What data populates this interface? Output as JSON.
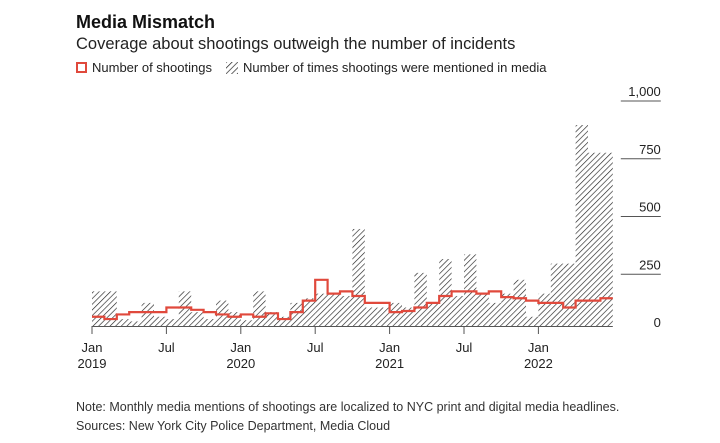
{
  "header": {
    "title": "Media Mismatch",
    "subtitle": "Coverage about shootings outweigh the number of incidents"
  },
  "legend": {
    "line_label": "Number of shootings",
    "bar_label": "Number of times shootings were mentioned in media"
  },
  "notes": {
    "note": "Note: Monthly media mentions of shootings are localized to NYC print and digital media headlines.",
    "sources": "Sources: New York City Police Department, Media Cloud"
  },
  "colors": {
    "line": "#e0493c",
    "hatch": "#222222",
    "axis": "#555555"
  },
  "chart_data": {
    "type": "bar",
    "title": "Media Mismatch",
    "subtitle": "Coverage about shootings outweigh the number of incidents",
    "x": [
      "2019-01",
      "2019-02",
      "2019-03",
      "2019-04",
      "2019-05",
      "2019-06",
      "2019-07",
      "2019-08",
      "2019-09",
      "2019-10",
      "2019-11",
      "2019-12",
      "2020-01",
      "2020-02",
      "2020-03",
      "2020-04",
      "2020-05",
      "2020-06",
      "2020-07",
      "2020-08",
      "2020-09",
      "2020-10",
      "2020-11",
      "2020-12",
      "2021-01",
      "2021-02",
      "2021-03",
      "2021-04",
      "2021-05",
      "2021-06",
      "2021-07",
      "2021-08",
      "2021-09",
      "2021-10",
      "2021-11",
      "2021-12",
      "2022-01",
      "2022-02",
      "2022-03",
      "2022-04",
      "2022-05",
      "2022-06"
    ],
    "x_tick_labels": [
      {
        "month": "2019-01",
        "line1": "Jan",
        "line2": "2019"
      },
      {
        "month": "2019-07",
        "line1": "Jul",
        "line2": ""
      },
      {
        "month": "2020-01",
        "line1": "Jan",
        "line2": "2020"
      },
      {
        "month": "2020-07",
        "line1": "Jul",
        "line2": ""
      },
      {
        "month": "2021-01",
        "line1": "Jan",
        "line2": "2021"
      },
      {
        "month": "2021-07",
        "line1": "Jul",
        "line2": ""
      },
      {
        "month": "2022-01",
        "line1": "Jan",
        "line2": "2022"
      }
    ],
    "series": [
      {
        "name": "Number of times shootings were mentioned in media",
        "type": "bar",
        "values": [
          150,
          150,
          30,
          20,
          100,
          40,
          30,
          150,
          60,
          30,
          110,
          60,
          25,
          150,
          60,
          40,
          100,
          120,
          140,
          140,
          130,
          420,
          80,
          80,
          100,
          80,
          230,
          100,
          290,
          130,
          310,
          140,
          100,
          140,
          200,
          40,
          140,
          270,
          270,
          870,
          750,
          750
        ]
      },
      {
        "name": "Number of shootings",
        "type": "line",
        "values": [
          40,
          30,
          50,
          60,
          60,
          60,
          80,
          80,
          70,
          60,
          50,
          40,
          50,
          40,
          55,
          30,
          60,
          110,
          200,
          140,
          150,
          130,
          100,
          100,
          60,
          65,
          80,
          100,
          130,
          150,
          150,
          140,
          150,
          125,
          120,
          110,
          100,
          100,
          80,
          110,
          110,
          120
        ]
      }
    ],
    "ylim": [
      0,
      1000
    ],
    "y_ticks": [
      0,
      250,
      500,
      750,
      1000
    ],
    "y_tick_labels": [
      "0",
      "250",
      "500",
      "750",
      "1,000"
    ],
    "grid": false,
    "legend_position": "top-left"
  }
}
